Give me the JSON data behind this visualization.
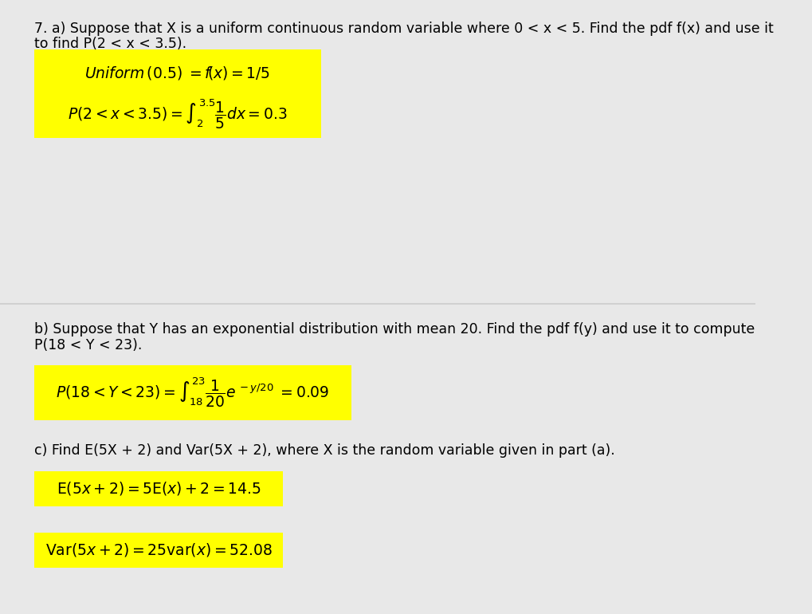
{
  "bg_color": "#ffffff",
  "page_bg": "#e8e8e8",
  "yellow": "#ffff00",
  "text_color": "#000000",
  "fig_width": 10.19,
  "fig_height": 7.7,
  "question_a_text1": "7. a) Suppose that X is a uniform continuous random variable where 0 < x < 5. Find the pdf f(x) and use it",
  "question_a_text2": "to find P(2 < x < 3.5).",
  "box_a_line1": "$\\mathit{Uniform}\\,(0.5)\\;=f\\left(x\\right)=1/5$",
  "box_a_line2": "$P(2<x<3.5)=\\int_{2}^{3.5}\\dfrac{1}{5}dx=0.3$",
  "question_b_text1": "b) Suppose that Y has an exponential distribution with mean 20. Find the pdf f(y) and use it to compute",
  "question_b_text2": "P(18 < Y < 23).",
  "box_b_line1": "$P(18<Y<23)=\\int_{18}^{23}\\dfrac{1}{20}e^{\\,-y/20}\\;=0.09$",
  "question_c_text": "c) Find E(5X + 2) and Var(5X + 2), where X is the random variable given in part (a).",
  "box_c_line1": "$\\mathrm{E}(5x+2)=5\\mathrm{E}(x)+2=14.5$",
  "box_c_line2": "$\\mathrm{Var}(5x+2)=25\\mathrm{var}(x)=52.08$"
}
